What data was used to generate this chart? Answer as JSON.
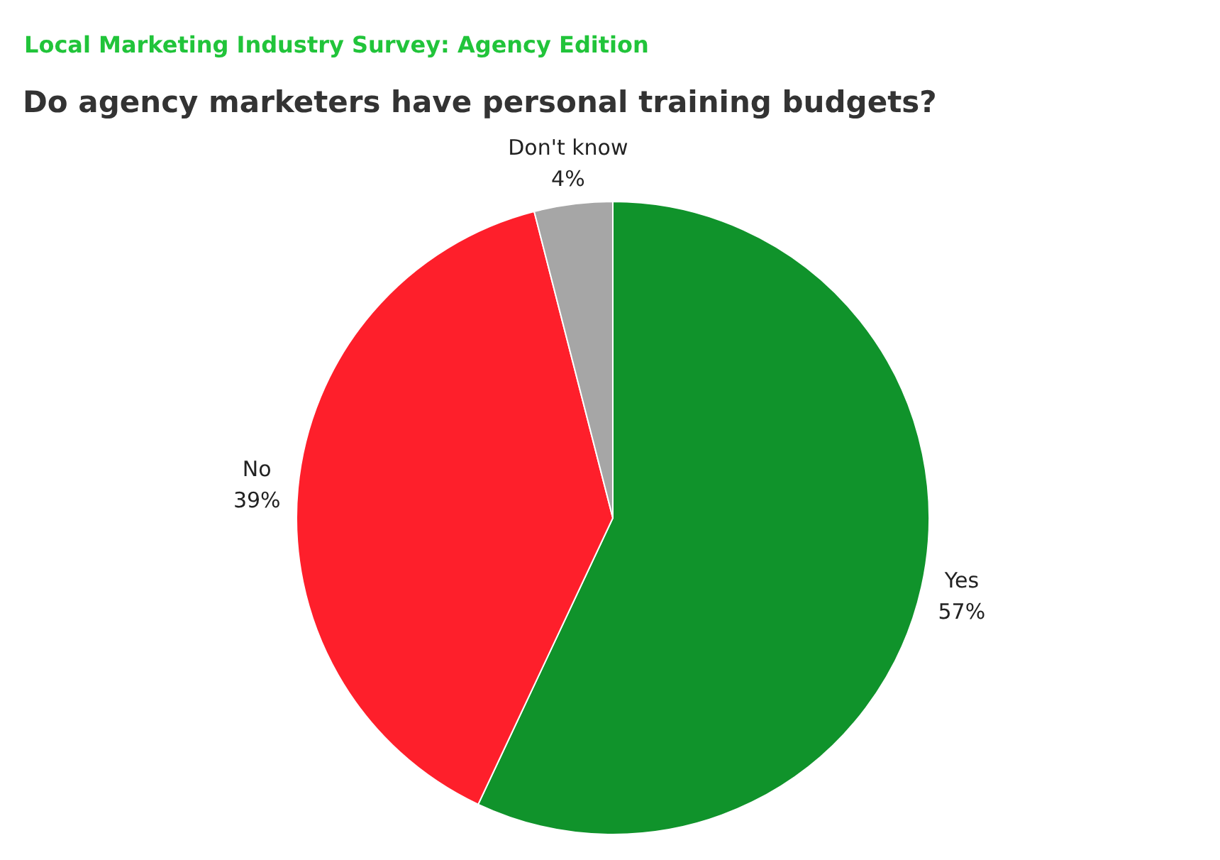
{
  "chart_data": {
    "type": "pie",
    "title": "Do agency marketers have personal training budgets?",
    "subtitle": "Local Marketing Industry Survey: Agency Edition",
    "categories": [
      "Yes",
      "No",
      "Don't know"
    ],
    "values": [
      57,
      39,
      4
    ],
    "colors": [
      "#10932b",
      "#fe1f2b",
      "#a6a6a6"
    ],
    "value_labels": [
      "57%",
      "39%",
      "4%"
    ],
    "legend": false
  }
}
